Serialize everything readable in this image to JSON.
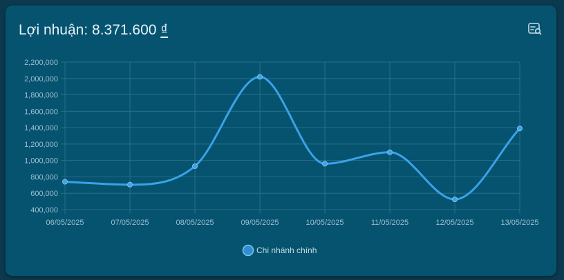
{
  "card": {
    "title_prefix": "Lợi nhuận: ",
    "title_value": "8.371.600",
    "title_currency": "₫",
    "zoom_icon": "search-document-icon"
  },
  "colors": {
    "background": "#0b3a4e",
    "card": "#05536f",
    "series_line": "#3aa2e6",
    "legend_fill": "#2f8fd1",
    "grid": "#2a6e89"
  },
  "chart_data": {
    "type": "line",
    "title": "Lợi nhuận: 8.371.600 ₫",
    "xlabel": "",
    "ylabel": "",
    "categories": [
      "06/05/2025",
      "07/05/2025",
      "08/05/2025",
      "09/05/2025",
      "10/05/2025",
      "11/05/2025",
      "12/05/2025",
      "13/05/2025"
    ],
    "series": [
      {
        "name": "Chi nhánh chính",
        "values": [
          740000,
          705000,
          930000,
          2020000,
          960000,
          1100000,
          525000,
          1390000
        ]
      }
    ],
    "ylim": [
      400000,
      2200000
    ],
    "yticks": [
      "400,000",
      "600,000",
      "800,000",
      "1,000,000",
      "1,200,000",
      "1,400,000",
      "1,600,000",
      "1,800,000",
      "2,000,000",
      "2,200,000"
    ],
    "ytick_values": [
      400000,
      600000,
      800000,
      1000000,
      1200000,
      1400000,
      1600000,
      1800000,
      2000000,
      2200000
    ],
    "grid": true,
    "smooth": true,
    "legend_position": "bottom-center"
  }
}
